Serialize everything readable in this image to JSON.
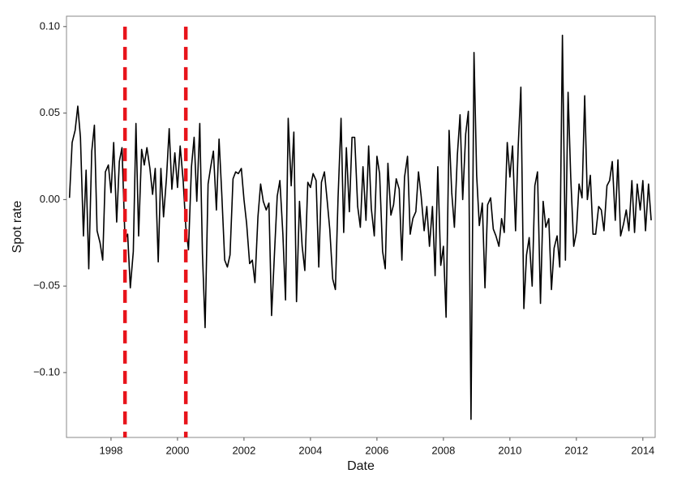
{
  "chart_data": {
    "type": "line",
    "x_label": "Date",
    "y_label": "Spot rate",
    "x": [
      1996.75,
      1996.83,
      1996.92,
      1997.0,
      1997.08,
      1997.17,
      1997.25,
      1997.33,
      1997.42,
      1997.5,
      1997.58,
      1997.67,
      1997.75,
      1997.83,
      1997.92,
      1998.0,
      1998.08,
      1998.17,
      1998.25,
      1998.33,
      1998.42,
      1998.5,
      1998.58,
      1998.67,
      1998.75,
      1998.83,
      1998.92,
      1999.0,
      1999.08,
      1999.17,
      1999.25,
      1999.33,
      1999.42,
      1999.5,
      1999.58,
      1999.67,
      1999.75,
      1999.83,
      1999.92,
      2000.0,
      2000.08,
      2000.17,
      2000.25,
      2000.33,
      2000.42,
      2000.5,
      2000.58,
      2000.67,
      2000.75,
      2000.83,
      2000.92,
      2001.0,
      2001.08,
      2001.17,
      2001.25,
      2001.33,
      2001.42,
      2001.5,
      2001.58,
      2001.67,
      2001.75,
      2001.83,
      2001.92,
      2002.0,
      2002.08,
      2002.17,
      2002.25,
      2002.33,
      2002.42,
      2002.5,
      2002.58,
      2002.67,
      2002.75,
      2002.83,
      2002.92,
      2003.0,
      2003.08,
      2003.17,
      2003.25,
      2003.33,
      2003.42,
      2003.5,
      2003.58,
      2003.67,
      2003.75,
      2003.83,
      2003.92,
      2004.0,
      2004.08,
      2004.17,
      2004.25,
      2004.33,
      2004.42,
      2004.5,
      2004.58,
      2004.67,
      2004.75,
      2004.83,
      2004.92,
      2005.0,
      2005.08,
      2005.17,
      2005.25,
      2005.33,
      2005.42,
      2005.5,
      2005.58,
      2005.67,
      2005.75,
      2005.83,
      2005.92,
      2006.0,
      2006.08,
      2006.17,
      2006.25,
      2006.33,
      2006.42,
      2006.5,
      2006.58,
      2006.67,
      2006.75,
      2006.83,
      2006.92,
      2007.0,
      2007.08,
      2007.17,
      2007.25,
      2007.33,
      2007.42,
      2007.5,
      2007.58,
      2007.67,
      2007.75,
      2007.83,
      2007.92,
      2008.0,
      2008.08,
      2008.17,
      2008.25,
      2008.33,
      2008.42,
      2008.5,
      2008.58,
      2008.67,
      2008.75,
      2008.83,
      2008.92,
      2009.0,
      2009.08,
      2009.17,
      2009.25,
      2009.33,
      2009.42,
      2009.5,
      2009.58,
      2009.67,
      2009.75,
      2009.83,
      2009.92,
      2010.0,
      2010.08,
      2010.17,
      2010.25,
      2010.33,
      2010.42,
      2010.5,
      2010.58,
      2010.67,
      2010.75,
      2010.83,
      2010.92,
      2011.0,
      2011.08,
      2011.17,
      2011.25,
      2011.33,
      2011.42,
      2011.5,
      2011.58,
      2011.67,
      2011.75,
      2011.83,
      2011.92,
      2012.0,
      2012.08,
      2012.17,
      2012.25,
      2012.33,
      2012.42,
      2012.5,
      2012.58,
      2012.67,
      2012.75,
      2012.83,
      2012.92,
      2013.0,
      2013.08,
      2013.17,
      2013.25,
      2013.33,
      2013.42,
      2013.5,
      2013.58,
      2013.67,
      2013.75,
      2013.83,
      2013.92,
      2014.0,
      2014.08,
      2014.17,
      2014.25
    ],
    "values": [
      0.001,
      0.033,
      0.04,
      0.054,
      0.036,
      -0.021,
      0.017,
      -0.04,
      0.028,
      0.043,
      -0.018,
      -0.025,
      -0.035,
      0.016,
      0.02,
      0.004,
      0.033,
      -0.013,
      0.022,
      0.03,
      -0.023,
      -0.02,
      -0.051,
      -0.03,
      0.044,
      -0.021,
      0.029,
      0.02,
      0.03,
      0.018,
      0.003,
      0.018,
      -0.036,
      0.018,
      -0.01,
      0.013,
      0.041,
      0.006,
      0.027,
      0.007,
      0.031,
      0.011,
      -0.016,
      -0.029,
      0.019,
      0.036,
      -0.001,
      0.044,
      -0.031,
      -0.074,
      0.009,
      0.019,
      0.028,
      -0.006,
      0.035,
      0.004,
      -0.035,
      -0.039,
      -0.032,
      0.012,
      0.016,
      0.015,
      0.018,
      0.0,
      -0.014,
      -0.037,
      -0.035,
      -0.048,
      -0.01,
      0.009,
      -0.001,
      -0.006,
      -0.002,
      -0.067,
      -0.03,
      0.002,
      0.011,
      -0.02,
      -0.058,
      0.047,
      0.008,
      0.039,
      -0.059,
      -0.001,
      -0.027,
      -0.041,
      0.01,
      0.007,
      0.015,
      0.011,
      -0.039,
      0.01,
      0.016,
      0.0,
      -0.017,
      -0.046,
      -0.052,
      0.001,
      0.047,
      -0.019,
      0.03,
      -0.007,
      0.036,
      0.036,
      -0.004,
      -0.016,
      0.019,
      -0.012,
      0.031,
      -0.005,
      -0.021,
      0.025,
      0.015,
      -0.03,
      -0.04,
      0.021,
      -0.009,
      -0.003,
      0.012,
      0.006,
      -0.035,
      0.013,
      0.025,
      -0.02,
      -0.011,
      -0.007,
      0.016,
      0.002,
      -0.018,
      -0.004,
      -0.027,
      -0.004,
      -0.044,
      0.019,
      -0.038,
      -0.027,
      -0.068,
      0.04,
      0.004,
      -0.016,
      0.026,
      0.049,
      0.0,
      0.038,
      0.051,
      -0.127,
      0.085,
      0.014,
      -0.015,
      -0.002,
      -0.051,
      -0.003,
      0.001,
      -0.017,
      -0.021,
      -0.027,
      -0.011,
      -0.019,
      0.033,
      0.013,
      0.031,
      -0.018,
      0.031,
      0.065,
      -0.063,
      -0.032,
      -0.022,
      -0.05,
      0.008,
      0.016,
      -0.06,
      -0.001,
      -0.016,
      -0.011,
      -0.052,
      -0.028,
      -0.021,
      -0.039,
      0.095,
      -0.035,
      0.062,
      0.013,
      -0.027,
      -0.019,
      0.009,
      0.001,
      0.06,
      0.0,
      0.014,
      -0.02,
      -0.02,
      -0.004,
      -0.006,
      -0.018,
      0.008,
      0.011,
      0.022,
      -0.012,
      0.023,
      -0.021,
      -0.014,
      -0.006,
      -0.018,
      0.011,
      -0.019,
      0.009,
      -0.006,
      0.011,
      -0.018,
      0.009,
      -0.012
    ],
    "color": "#000000",
    "vlines": [
      1998.42,
      2000.25
    ],
    "vline_color": "#e8141b",
    "xlim": [
      1996.66,
      2014.37
    ],
    "xticks": [
      1998,
      2000,
      2002,
      2004,
      2006,
      2008,
      2010,
      2012,
      2014
    ],
    "ylim": [
      -0.1375,
      0.106
    ],
    "yticks": [
      {
        "value": -0.1,
        "label": "−0.10"
      },
      {
        "value": -0.05,
        "label": "−0.05"
      },
      {
        "value": 0,
        "label": "0.00"
      },
      {
        "value": 0.05,
        "label": "0.05"
      },
      {
        "value": 0.1,
        "label": "0.10"
      }
    ],
    "grid": false
  }
}
